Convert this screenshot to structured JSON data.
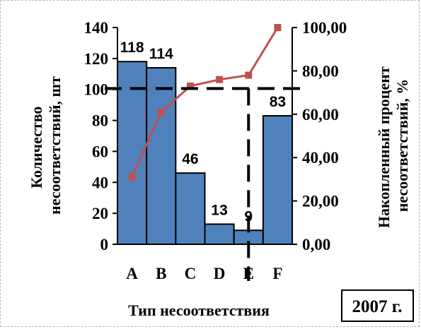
{
  "chart_data": {
    "type": "bar",
    "categories": [
      "A",
      "B",
      "C",
      "D",
      "E",
      "F"
    ],
    "series": [
      {
        "values": [
          118,
          114,
          46,
          13,
          9,
          83
        ],
        "color": "#4f81bd"
      }
    ],
    "line_series": [
      {
        "values": [
          31,
          61,
          73,
          76,
          78,
          100
        ],
        "color": "#c0504d"
      }
    ],
    "data_labels": [
      "118",
      "114",
      "46",
      "13",
      "9",
      "83"
    ],
    "ylabel": "Количество несоответствий, шт",
    "y2label": "Накопленный   процент несоответствий, %",
    "xlabel": "Тип  несоответствия",
    "ylim": [
      0,
      140
    ],
    "y2lim": [
      0,
      100
    ],
    "yticks": [
      "0",
      "20",
      "40",
      "60",
      "80",
      "100",
      "120",
      "140"
    ],
    "y2ticks": [
      "0,00",
      "20,00",
      "40,00",
      "60,00",
      "80,00",
      "100,00"
    ],
    "threshold_percent": 80,
    "cutoff_category": "E",
    "grid": false,
    "legend": "none"
  },
  "year_label": "2007 г."
}
